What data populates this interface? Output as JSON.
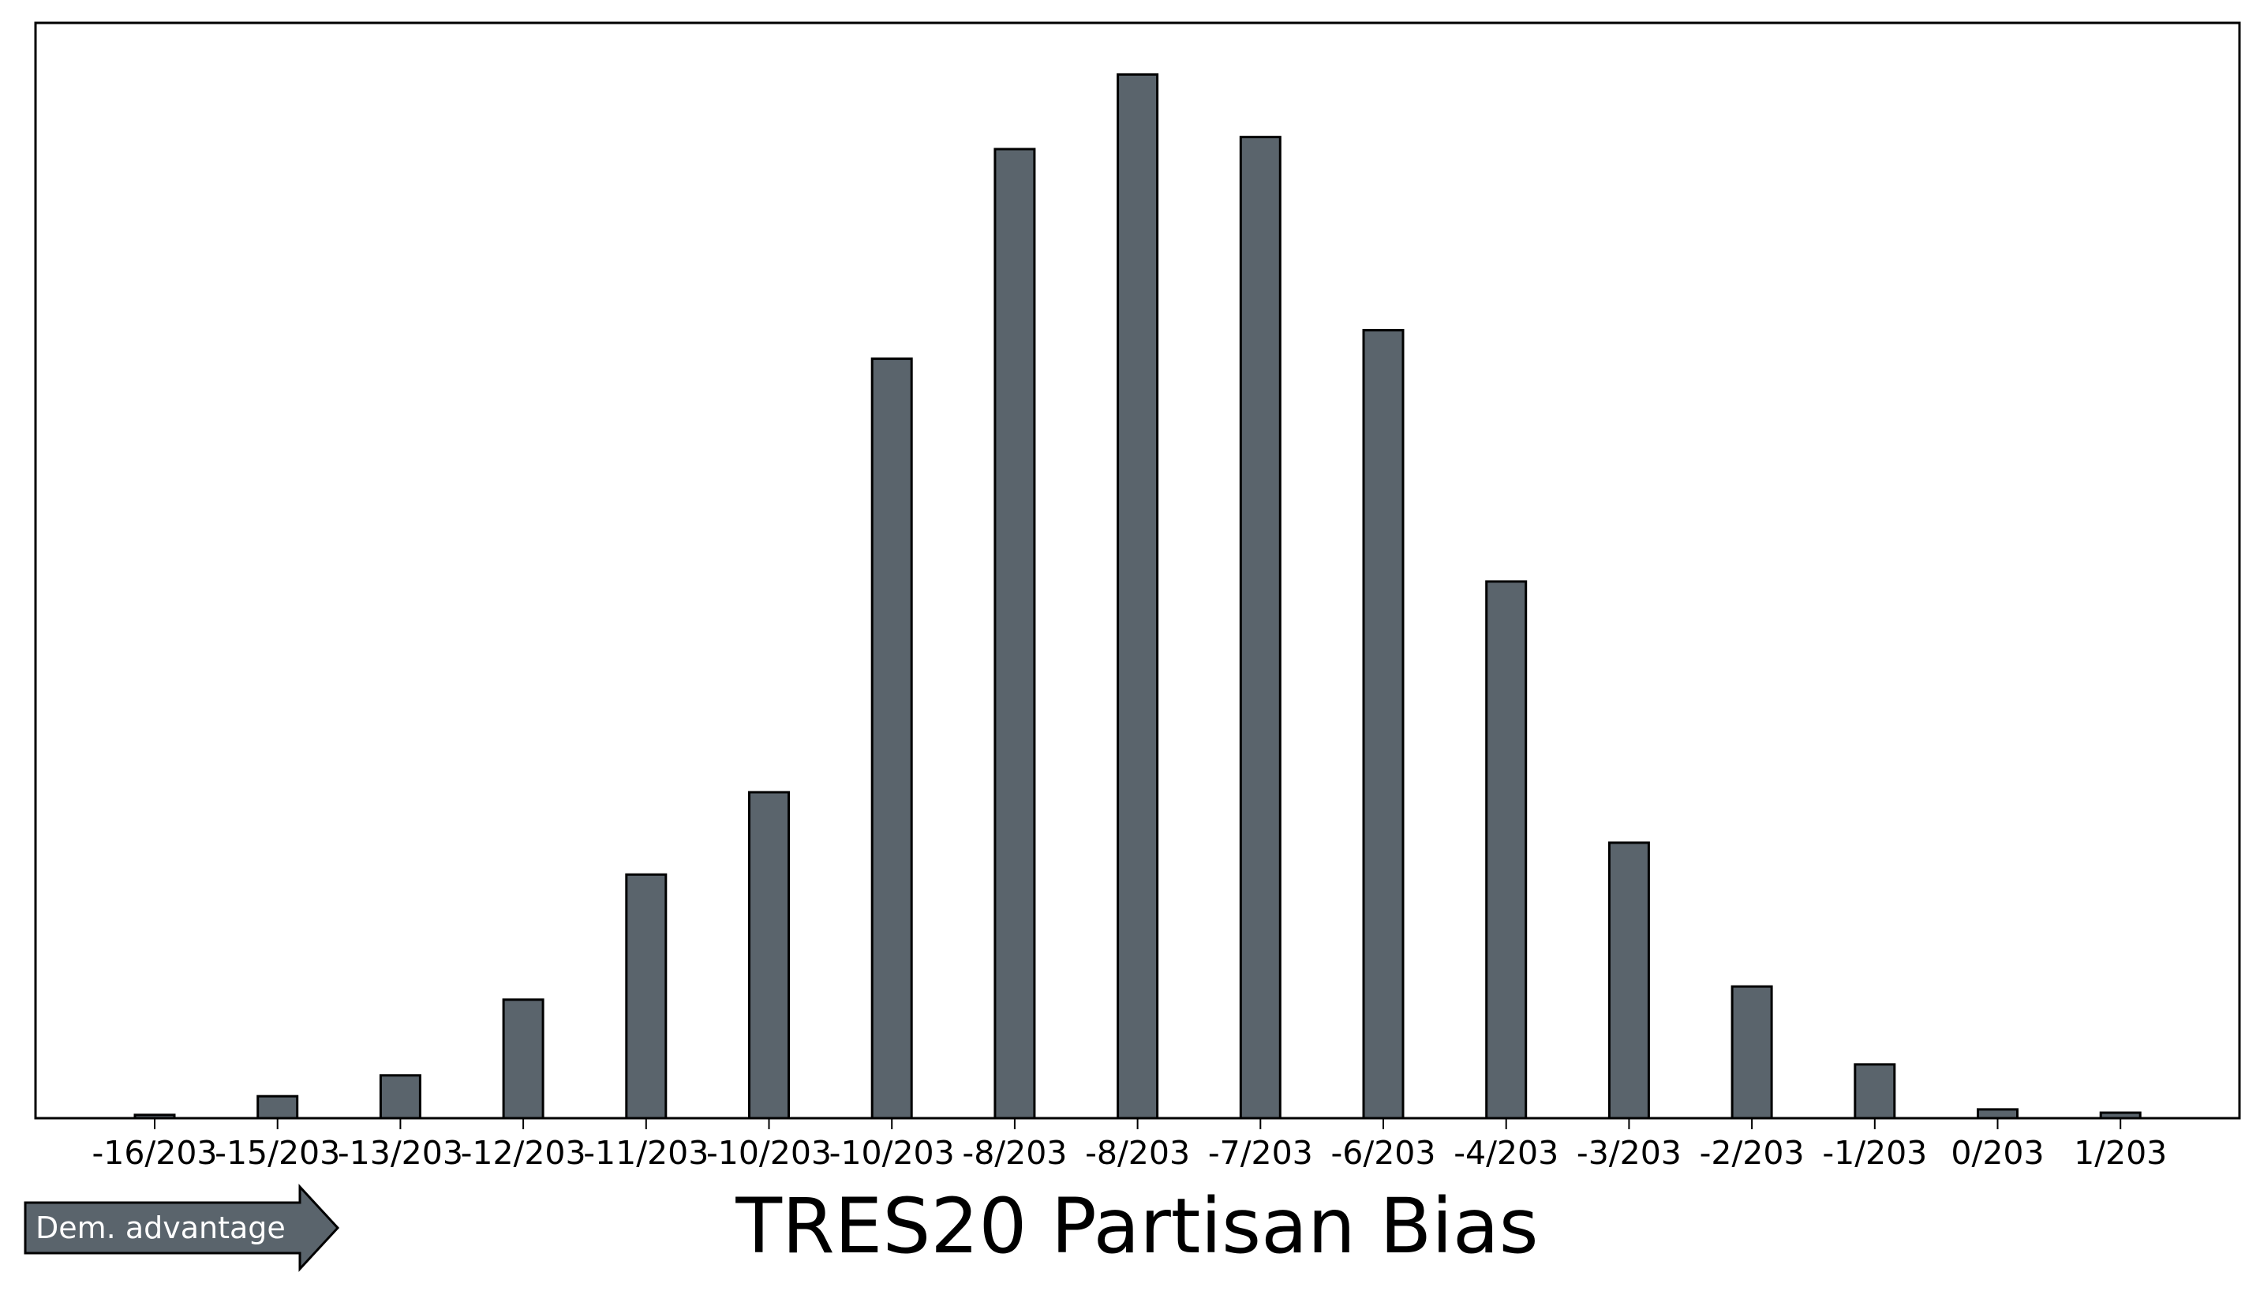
{
  "chart_data": {
    "type": "bar",
    "xlabel": "TRES20 Partisan Bias",
    "ylabel": "",
    "title": "",
    "categories": [
      "-16/203",
      "-15/203",
      "-13/203",
      "-12/203",
      "-11/203",
      "-10/203",
      "-10/203",
      "-8/203",
      "-8/203",
      "-7/203",
      "-6/203",
      "-4/203",
      "-3/203",
      "-2/203",
      "-1/203",
      "0/203",
      "1/203"
    ],
    "values": [
      3,
      20,
      39,
      108,
      222,
      297,
      692,
      883,
      951,
      894,
      718,
      489,
      251,
      120,
      49,
      8,
      5
    ],
    "ylim": [
      0,
      998
    ],
    "grid": false,
    "y_ticks_shown": false,
    "bar_color": "#5a646c",
    "edge_color": "#000000"
  },
  "annotation": {
    "text": "Dem. advantage",
    "direction": "right",
    "fill": "#5a646c"
  }
}
